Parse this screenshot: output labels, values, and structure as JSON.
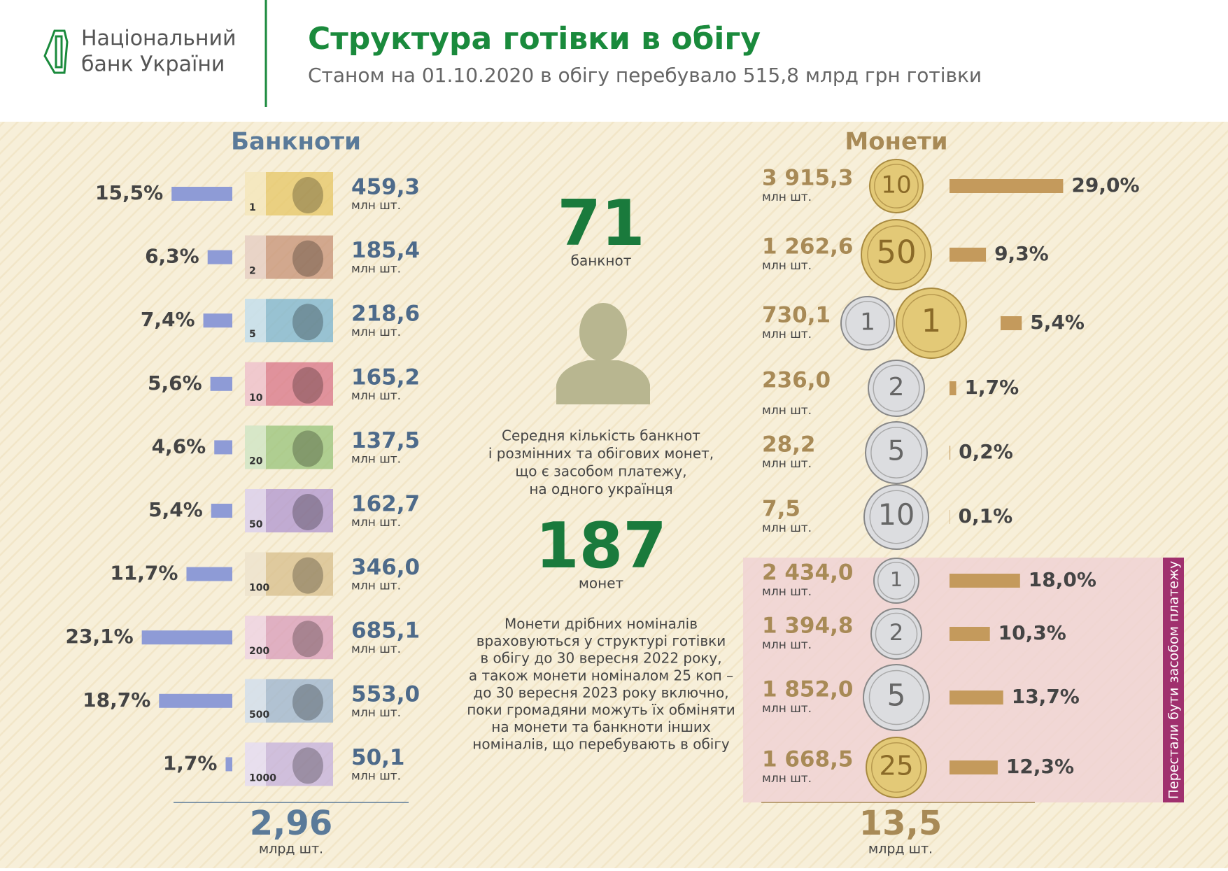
{
  "header": {
    "logo_lines": [
      "Національний",
      "банк України"
    ],
    "title": "Структура готівки в обігу",
    "subtitle": "Станом на 01.10.2020 в обігу перебувало 515,8 млрд грн готівки"
  },
  "banknotes": {
    "title": "Банкноти",
    "items": [
      {
        "denomination": "1",
        "share": 15.5,
        "share_label": "15,5%",
        "count": "459,3",
        "unit": "млн шт."
      },
      {
        "denomination": "2",
        "share": 6.3,
        "share_label": "6,3%",
        "count": "185,4",
        "unit": "млн шт."
      },
      {
        "denomination": "5",
        "share": 7.4,
        "share_label": "7,4%",
        "count": "218,6",
        "unit": "млн шт."
      },
      {
        "denomination": "10",
        "share": 5.6,
        "share_label": "5,6%",
        "count": "165,2",
        "unit": "млн шт."
      },
      {
        "denomination": "20",
        "share": 4.6,
        "share_label": "4,6%",
        "count": "137,5",
        "unit": "млн шт."
      },
      {
        "denomination": "50",
        "share": 5.4,
        "share_label": "5,4%",
        "count": "162,7",
        "unit": "млн шт."
      },
      {
        "denomination": "100",
        "share": 11.7,
        "share_label": "11,7%",
        "count": "346,0",
        "unit": "млн шт."
      },
      {
        "denomination": "200",
        "share": 23.1,
        "share_label": "23,1%",
        "count": "685,1",
        "unit": "млн шт."
      },
      {
        "denomination": "500",
        "share": 18.7,
        "share_label": "18,7%",
        "count": "553,0",
        "unit": "млн шт."
      },
      {
        "denomination": "1000",
        "share": 1.7,
        "share_label": "1,7%",
        "count": "50,1",
        "unit": "млн шт."
      }
    ],
    "total": "2,96",
    "total_unit": "млрд шт."
  },
  "coins": {
    "title": "Монети",
    "items": [
      {
        "denomination": "10",
        "share": 29.0,
        "share_label": "29,0%",
        "count": "3 915,3",
        "unit": "млн шт."
      },
      {
        "denomination": "50",
        "share": 9.3,
        "share_label": "9,3%",
        "count": "1 262,6",
        "unit": "млн шт."
      },
      {
        "denomination": "1",
        "share": 5.4,
        "share_label": "5,4%",
        "count": "730,1",
        "unit": "млн шт."
      },
      {
        "denomination": "2",
        "share": 1.7,
        "share_label": "1,7%",
        "count": "236,0",
        "unit": "млн шт."
      },
      {
        "denomination": "5",
        "share": 0.2,
        "share_label": "0,2%",
        "count": "28,2",
        "unit": "млн шт."
      },
      {
        "denomination": "10",
        "share": 0.1,
        "share_label": "0,1%",
        "count": "7,5",
        "unit": "млн шт."
      },
      {
        "denomination": "1",
        "share": 18.0,
        "share_label": "18,0%",
        "count": "2 434,0",
        "unit": "млн шт."
      },
      {
        "denomination": "2",
        "share": 10.3,
        "share_label": "10,3%",
        "count": "1 394,8",
        "unit": "млн шт."
      },
      {
        "denomination": "5",
        "share": 13.7,
        "share_label": "13,7%",
        "count": "1 852,0",
        "unit": "млн шт."
      },
      {
        "denomination": "25",
        "share": 12.3,
        "share_label": "12,3%",
        "count": "1 668,5",
        "unit": "млн шт."
      }
    ],
    "withdrawn_label": "Перестали бути засобом платежу",
    "total": "13,5",
    "total_unit": "млрд шт."
  },
  "center": {
    "banknotes_per_capita": "71",
    "banknotes_word": "банкнот",
    "description_lines": [
      "Середня кількість банкнот",
      "і розмінних та обігових монет,",
      "що є засобом платежу,",
      "на одного українця"
    ],
    "coins_per_capita": "187",
    "coins_word": "монет",
    "note_lines": [
      "Монети дрібних номіналів",
      "враховуються у структурі готівки",
      "в обігу до 30 вересня 2022 року,",
      "а також монети  номіналом 25 коп –",
      "до 30 вересня 2023 року включно,",
      "поки громадяни можуть їх обміняти",
      "на монети та банкноти інших",
      "номіналів, що перебувають в обігу"
    ]
  }
}
